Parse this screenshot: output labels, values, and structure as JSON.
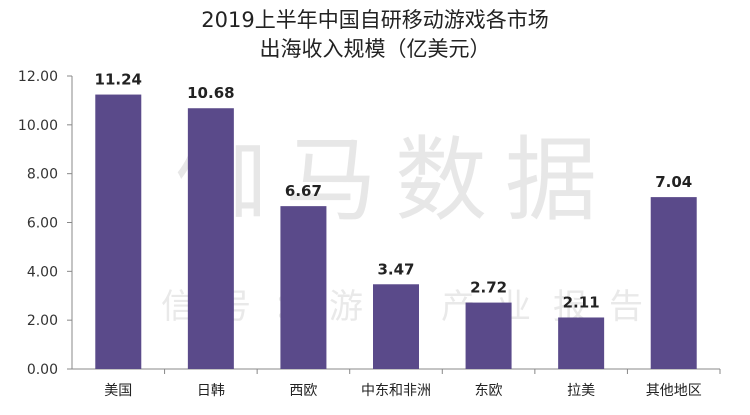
{
  "chart_data": {
    "type": "bar",
    "title_lines": [
      "2019上半年中国自研移动游戏各市场",
      "出海收入规模（亿美元）"
    ],
    "categories": [
      "美国",
      "日韩",
      "西欧",
      "中东和非洲",
      "东欧",
      "拉美",
      "其他地区"
    ],
    "values": [
      11.24,
      10.68,
      6.67,
      3.47,
      2.72,
      2.11,
      7.04
    ],
    "value_labels": [
      "11.24",
      "10.68",
      "6.67",
      "3.47",
      "2.72",
      "2.11",
      "7.04"
    ],
    "yticks": [
      "0.00",
      "2.00",
      "4.00",
      "6.00",
      "8.00",
      "10.00",
      "12.00"
    ],
    "ylim": [
      0,
      12
    ],
    "xlabel": "",
    "ylabel": "",
    "grid": false,
    "bar_color": "#5a4a8a"
  },
  "watermark": {
    "line1": "伽马数据",
    "line2": "微信号：游戏产业报告"
  }
}
